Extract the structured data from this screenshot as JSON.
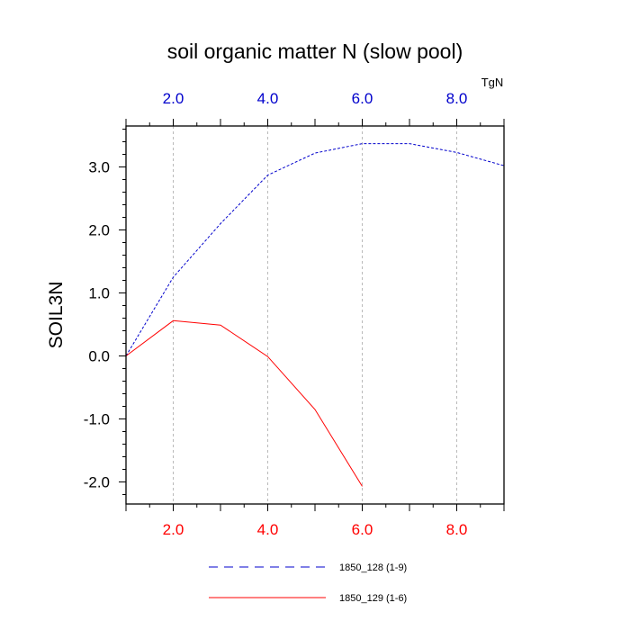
{
  "chart_data": {
    "type": "line",
    "title": "soil organic matter N (slow pool)",
    "ylabel": "SOIL3N",
    "units_label": "TgN",
    "xlim": [
      1,
      9
    ],
    "ylim": [
      -2.35,
      3.65
    ],
    "x_ticks": [
      2,
      4,
      6,
      8
    ],
    "x_tick_labels": [
      "2.0",
      "4.0",
      "6.0",
      "8.0"
    ],
    "y_ticks": [
      -2,
      -1,
      0,
      1,
      2,
      3
    ],
    "y_tick_labels": [
      "-2.0",
      "-1.0",
      "0.0",
      "1.0",
      "2.0",
      "3.0"
    ],
    "grid": "vertical dashed at major x ticks",
    "series": [
      {
        "name": "1850_128 (1-9)",
        "color": "#0000cc",
        "dash": "dashed",
        "axis": "top",
        "x": [
          1,
          2,
          3,
          4,
          5,
          6,
          7,
          8,
          9
        ],
        "values": [
          0.0,
          1.25,
          2.1,
          2.87,
          3.22,
          3.37,
          3.37,
          3.23,
          3.02
        ]
      },
      {
        "name": "1850_129 (1-6)",
        "color": "#ff0000",
        "dash": "solid",
        "axis": "bottom",
        "x": [
          1,
          2,
          3,
          4,
          5,
          6
        ],
        "values": [
          0.0,
          0.56,
          0.49,
          -0.01,
          -0.85,
          -2.07
        ]
      }
    ],
    "top_axis_color": "#0000cc",
    "bottom_axis_color": "#ff0000"
  }
}
